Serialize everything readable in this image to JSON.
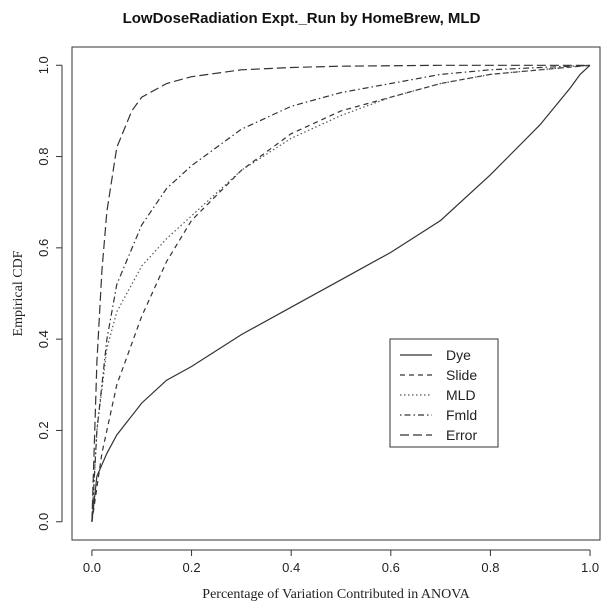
{
  "chart_data": {
    "type": "line",
    "title": "LowDoseRadiation Expt._Run by HomeBrew, MLD",
    "xlabel": "Percentage of Variation Contributed in ANOVA",
    "ylabel": "Empirical CDF",
    "xlim": [
      -0.04,
      1.02
    ],
    "ylim": [
      -0.04,
      1.04
    ],
    "x_ticks": [
      0.0,
      0.2,
      0.4,
      0.6,
      0.8,
      1.0
    ],
    "x_tick_labels": [
      "0.0",
      "0.2",
      "0.4",
      "0.6",
      "0.8",
      "1.0"
    ],
    "y_ticks": [
      0.0,
      0.2,
      0.4,
      0.6,
      0.8,
      1.0
    ],
    "y_tick_labels": [
      "0.0",
      "0.2",
      "0.4",
      "0.6",
      "0.8",
      "1.0"
    ],
    "grid": false,
    "legend_position": "bottom-right",
    "series": [
      {
        "name": "Dye",
        "line_style": "solid",
        "color": "#333333",
        "points": [
          [
            0,
            0
          ],
          [
            0.01,
            0.1
          ],
          [
            0.03,
            0.15
          ],
          [
            0.05,
            0.19
          ],
          [
            0.1,
            0.26
          ],
          [
            0.15,
            0.31
          ],
          [
            0.2,
            0.34
          ],
          [
            0.3,
            0.41
          ],
          [
            0.4,
            0.47
          ],
          [
            0.5,
            0.53
          ],
          [
            0.6,
            0.59
          ],
          [
            0.7,
            0.66
          ],
          [
            0.8,
            0.76
          ],
          [
            0.9,
            0.87
          ],
          [
            0.96,
            0.95
          ],
          [
            0.98,
            0.98
          ],
          [
            1.0,
            1.0
          ]
        ]
      },
      {
        "name": "Slide",
        "line_style": "dashed",
        "color": "#333333",
        "points": [
          [
            0,
            0
          ],
          [
            0.02,
            0.15
          ],
          [
            0.05,
            0.3
          ],
          [
            0.1,
            0.45
          ],
          [
            0.15,
            0.57
          ],
          [
            0.2,
            0.66
          ],
          [
            0.3,
            0.77
          ],
          [
            0.4,
            0.85
          ],
          [
            0.5,
            0.9
          ],
          [
            0.6,
            0.93
          ],
          [
            0.7,
            0.96
          ],
          [
            0.8,
            0.98
          ],
          [
            0.9,
            0.99
          ],
          [
            1.0,
            1.0
          ]
        ]
      },
      {
        "name": "MLD",
        "line_style": "dotted",
        "color": "#555555",
        "points": [
          [
            0,
            0
          ],
          [
            0.01,
            0.2
          ],
          [
            0.03,
            0.38
          ],
          [
            0.05,
            0.46
          ],
          [
            0.1,
            0.56
          ],
          [
            0.15,
            0.62
          ],
          [
            0.2,
            0.67
          ],
          [
            0.3,
            0.77
          ],
          [
            0.4,
            0.84
          ],
          [
            0.5,
            0.89
          ],
          [
            0.6,
            0.93
          ],
          [
            0.7,
            0.96
          ],
          [
            0.8,
            0.98
          ],
          [
            0.9,
            0.99
          ],
          [
            1.0,
            1.0
          ]
        ]
      },
      {
        "name": "Fmld",
        "line_style": "dashdot",
        "color": "#333333",
        "points": [
          [
            0,
            0
          ],
          [
            0.01,
            0.2
          ],
          [
            0.03,
            0.4
          ],
          [
            0.05,
            0.52
          ],
          [
            0.1,
            0.65
          ],
          [
            0.15,
            0.73
          ],
          [
            0.2,
            0.78
          ],
          [
            0.3,
            0.86
          ],
          [
            0.4,
            0.91
          ],
          [
            0.5,
            0.94
          ],
          [
            0.6,
            0.96
          ],
          [
            0.7,
            0.98
          ],
          [
            0.8,
            0.99
          ],
          [
            0.9,
            0.995
          ],
          [
            1.0,
            1.0
          ]
        ]
      },
      {
        "name": "Error",
        "line_style": "longdash",
        "color": "#333333",
        "points": [
          [
            0,
            0
          ],
          [
            0.01,
            0.35
          ],
          [
            0.02,
            0.55
          ],
          [
            0.03,
            0.68
          ],
          [
            0.05,
            0.82
          ],
          [
            0.08,
            0.9
          ],
          [
            0.1,
            0.93
          ],
          [
            0.15,
            0.96
          ],
          [
            0.2,
            0.975
          ],
          [
            0.3,
            0.99
          ],
          [
            0.4,
            0.995
          ],
          [
            0.5,
            0.998
          ],
          [
            0.7,
            1.0
          ],
          [
            1.0,
            1.0
          ]
        ]
      }
    ]
  }
}
